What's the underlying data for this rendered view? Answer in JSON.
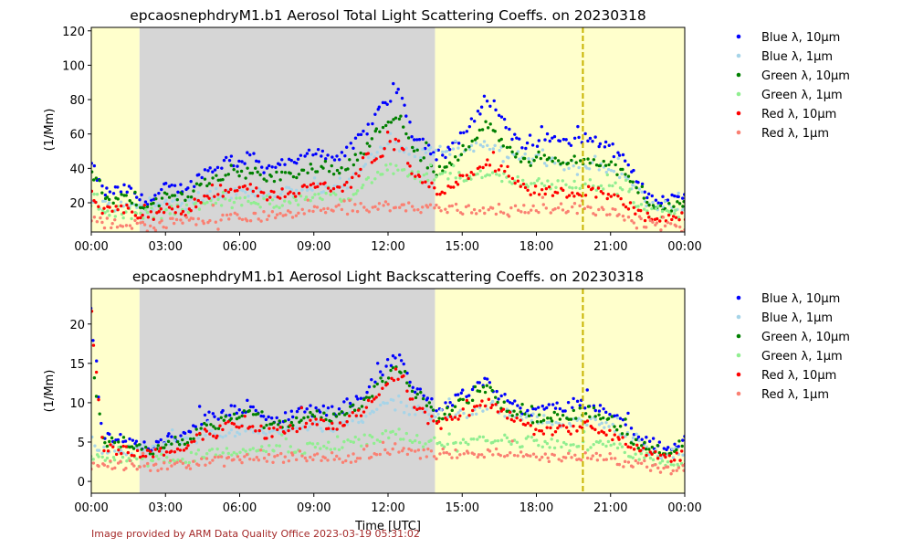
{
  "colors": {
    "night_shade": "#d6d6d6",
    "day_shade": "#ffffcc",
    "marker_line": "#c8b400",
    "footer_text": "#a52a2a"
  },
  "footer": "Image provided by ARM Data Quality Office 2023-03-19 05:31:02",
  "chart_data": [
    {
      "type": "scatter",
      "title": "epcaosnephdryM1.b1 Aerosol Total Light Scattering Coeffs. on 20230318",
      "xlabel": "",
      "ylabel": "(1/Mm)",
      "xlim": [
        0,
        24
      ],
      "ylim": [
        3,
        122
      ],
      "xticks": [
        0,
        3,
        6,
        9,
        12,
        15,
        18,
        21,
        24
      ],
      "xtick_labels": [
        "00:00",
        "03:00",
        "06:00",
        "09:00",
        "12:00",
        "15:00",
        "18:00",
        "21:00",
        "00:00"
      ],
      "yticks": [
        20,
        40,
        60,
        80,
        100,
        120
      ],
      "ytick_labels": [
        "20",
        "40",
        "60",
        "80",
        "100",
        "120"
      ],
      "grid": false,
      "legend": "outside-right",
      "shading": [
        {
          "x0": 0,
          "x1": 1.95,
          "kind": "day"
        },
        {
          "x0": 1.95,
          "x1": 13.9,
          "kind": "night"
        },
        {
          "x0": 13.9,
          "x1": 24,
          "kind": "day"
        }
      ],
      "vline_x": 19.88,
      "x": [
        0.0,
        0.5,
        1.0,
        1.5,
        2.0,
        2.5,
        3.0,
        3.5,
        4.0,
        4.5,
        5.0,
        5.5,
        6.0,
        6.5,
        7.0,
        7.5,
        8.0,
        8.5,
        9.0,
        9.5,
        10.0,
        10.5,
        11.0,
        11.5,
        12.0,
        12.5,
        13.0,
        13.5,
        14.0,
        14.5,
        15.0,
        15.5,
        16.0,
        16.5,
        17.0,
        17.5,
        18.0,
        18.5,
        19.0,
        19.5,
        20.0,
        20.5,
        21.0,
        21.5,
        22.0,
        22.5,
        23.0,
        23.5,
        24.0
      ],
      "series": [
        {
          "name": "Blue λ, 10μm",
          "color": "#0000ff",
          "values": [
            42,
            26,
            27,
            28,
            22,
            22,
            29,
            28,
            30,
            38,
            40,
            45,
            43,
            48,
            40,
            42,
            43,
            45,
            50,
            48,
            47,
            52,
            60,
            72,
            80,
            85,
            60,
            55,
            45,
            52,
            60,
            68,
            82,
            72,
            60,
            52,
            55,
            58,
            55,
            55,
            58,
            55,
            52,
            45,
            35,
            25,
            22,
            22,
            26
          ]
        },
        {
          "name": "Blue λ, 1μm",
          "color": "#a6d4e8",
          "values": [
            20,
            19,
            18,
            19,
            18,
            17,
            20,
            21,
            22,
            24,
            24,
            25,
            26,
            27,
            26,
            26,
            26,
            27,
            28,
            29,
            29,
            32,
            40,
            48,
            55,
            52,
            50,
            48,
            50,
            50,
            50,
            52,
            55,
            50,
            48,
            46,
            45,
            44,
            42,
            42,
            43,
            42,
            40,
            35,
            27,
            20,
            18,
            18,
            18
          ]
        },
        {
          "name": "Green λ, 10μm",
          "color": "#008000",
          "values": [
            35,
            22,
            22,
            23,
            18,
            18,
            24,
            23,
            25,
            32,
            33,
            37,
            36,
            40,
            33,
            35,
            36,
            37,
            41,
            40,
            39,
            44,
            50,
            60,
            68,
            72,
            50,
            45,
            38,
            43,
            50,
            56,
            66,
            58,
            50,
            43,
            45,
            47,
            45,
            44,
            46,
            44,
            42,
            37,
            29,
            21,
            18,
            18,
            21
          ]
        },
        {
          "name": "Green λ, 1μm",
          "color": "#90ee90",
          "values": [
            16,
            14,
            14,
            14,
            13,
            13,
            15,
            16,
            17,
            18,
            19,
            20,
            20,
            21,
            20,
            20,
            20,
            21,
            22,
            23,
            23,
            25,
            30,
            36,
            40,
            38,
            36,
            34,
            35,
            35,
            35,
            36,
            38,
            35,
            34,
            32,
            32,
            31,
            30,
            30,
            31,
            30,
            29,
            26,
            20,
            15,
            13,
            13,
            13
          ]
        },
        {
          "name": "Red λ, 10μm",
          "color": "#ff0000",
          "values": [
            24,
            15,
            15,
            16,
            12,
            12,
            17,
            16,
            18,
            23,
            24,
            27,
            26,
            29,
            24,
            25,
            26,
            27,
            30,
            29,
            28,
            32,
            38,
            46,
            52,
            55,
            36,
            32,
            26,
            30,
            34,
            38,
            45,
            40,
            35,
            28,
            27,
            27,
            26,
            26,
            27,
            26,
            24,
            20,
            15,
            11,
            10,
            10,
            12
          ]
        },
        {
          "name": "Red λ, 1μm",
          "color": "#fa8072",
          "values": [
            9,
            8,
            8,
            8,
            7,
            6,
            8,
            9,
            9,
            10,
            10,
            11,
            12,
            12,
            12,
            12,
            13,
            14,
            15,
            15,
            16,
            16,
            17,
            18,
            18,
            18,
            17,
            17,
            17,
            17,
            16,
            16,
            16,
            16,
            16,
            16,
            17,
            17,
            17,
            17,
            16,
            15,
            14,
            12,
            9,
            7,
            6,
            6,
            6
          ]
        }
      ]
    },
    {
      "type": "scatter",
      "title": "epcaosnephdryM1.b1 Aerosol Light Backscattering Coeffs. on 20230318",
      "xlabel": "Time [UTC]",
      "ylabel": "(1/Mm)",
      "xlim": [
        0,
        24
      ],
      "ylim": [
        -1.5,
        24.5
      ],
      "xticks": [
        0,
        3,
        6,
        9,
        12,
        15,
        18,
        21,
        24
      ],
      "xtick_labels": [
        "00:00",
        "03:00",
        "06:00",
        "09:00",
        "12:00",
        "15:00",
        "18:00",
        "21:00",
        "00:00"
      ],
      "yticks": [
        0,
        5,
        10,
        15,
        20
      ],
      "ytick_labels": [
        "0",
        "5",
        "10",
        "15",
        "20"
      ],
      "grid": false,
      "legend": "outside-right",
      "shading": [
        {
          "x0": 0,
          "x1": 1.95,
          "kind": "day"
        },
        {
          "x0": 1.95,
          "x1": 13.9,
          "kind": "night"
        },
        {
          "x0": 13.9,
          "x1": 24,
          "kind": "day"
        }
      ],
      "vline_x": 19.88,
      "x": [
        0.0,
        0.5,
        1.0,
        1.5,
        2.0,
        2.5,
        3.0,
        3.5,
        4.0,
        4.5,
        5.0,
        5.5,
        6.0,
        6.5,
        7.0,
        7.5,
        8.0,
        8.5,
        9.0,
        9.5,
        10.0,
        10.5,
        11.0,
        11.5,
        12.0,
        12.5,
        13.0,
        13.5,
        14.0,
        14.5,
        15.0,
        15.5,
        16.0,
        16.5,
        17.0,
        17.5,
        18.0,
        18.5,
        19.0,
        19.5,
        20.0,
        20.5,
        21.0,
        21.5,
        22.0,
        22.5,
        23.0,
        23.5,
        24.0
      ],
      "series": [
        {
          "name": "Blue λ, 10μm",
          "color": "#0000ff",
          "values": [
            22,
            5.5,
            5.5,
            5.5,
            4.5,
            4.5,
            5.5,
            5.5,
            6,
            8,
            8,
            9,
            9,
            10,
            8,
            8,
            8.5,
            9,
            9.5,
            9,
            9,
            10,
            11,
            13,
            15,
            16,
            12,
            11,
            9,
            10,
            11,
            12,
            13,
            11,
            10,
            9,
            9,
            9.5,
            9.5,
            9.5,
            10,
            9.5,
            9,
            7.5,
            6,
            5,
            4.5,
            4.5,
            5.5
          ]
        },
        {
          "name": "Blue λ, 1μm",
          "color": "#a6d4e8",
          "values": [
            5,
            4,
            4,
            4,
            4,
            4,
            4.5,
            5,
            5,
            6,
            6,
            6,
            6.5,
            6.5,
            6.5,
            6.5,
            6.5,
            6.5,
            7,
            7,
            7,
            7.5,
            8,
            9,
            10,
            9.5,
            9,
            8.5,
            8.5,
            8.5,
            8.5,
            9,
            9.5,
            9,
            8.5,
            8,
            8,
            8,
            7.5,
            7.5,
            7.5,
            7.5,
            7,
            6,
            5,
            4,
            3.5,
            3.5,
            4
          ]
        },
        {
          "name": "Green λ, 10μm",
          "color": "#008000",
          "values": [
            15,
            5,
            5,
            5,
            4,
            4,
            5,
            5,
            5.5,
            7,
            7,
            8,
            8,
            9,
            7,
            7.5,
            7.5,
            8,
            8.5,
            8,
            8,
            9,
            10,
            12,
            13.5,
            14.5,
            11,
            10,
            8,
            9,
            10,
            11,
            12,
            10,
            9,
            8,
            8,
            8.5,
            8.5,
            8.5,
            9,
            8.5,
            8,
            6.5,
            5,
            4.5,
            4,
            4,
            5
          ]
        },
        {
          "name": "Green λ, 1μm",
          "color": "#90ee90",
          "values": [
            3,
            2.5,
            2.5,
            2.5,
            2.5,
            2.5,
            3,
            3,
            3,
            3.5,
            3.5,
            4,
            4,
            4,
            4,
            4,
            4,
            4,
            4.5,
            4.5,
            4.5,
            5,
            5,
            5.5,
            6,
            6,
            5.5,
            5,
            5,
            5,
            5,
            5.5,
            5.5,
            5.5,
            5,
            5,
            5,
            5,
            4.5,
            4.5,
            4.5,
            4.5,
            4.5,
            4,
            3.5,
            3,
            2.5,
            2.5,
            2.5
          ]
        },
        {
          "name": "Red λ, 10μm",
          "color": "#ff0000",
          "values": [
            21.5,
            4,
            4,
            4,
            3.5,
            3.5,
            4,
            4,
            4.5,
            6,
            6,
            7,
            7,
            7.5,
            6,
            6.5,
            6.5,
            7,
            7.5,
            7,
            7,
            8,
            9,
            11,
            12.5,
            13.5,
            10,
            9,
            7,
            8,
            8.5,
            9,
            10,
            9,
            8,
            7,
            6.5,
            6.5,
            6.5,
            6.5,
            7,
            6.5,
            6,
            5,
            4,
            3.5,
            3,
            3,
            3.5
          ]
        },
        {
          "name": "Red λ, 1μm",
          "color": "#fa8072",
          "values": [
            2,
            2,
            2,
            2,
            1.5,
            2,
            2,
            2,
            2,
            2.5,
            2.5,
            2.5,
            3,
            3,
            3,
            3,
            3,
            3,
            3,
            3,
            3,
            3,
            3.5,
            3.5,
            4,
            4,
            3.5,
            3.5,
            3.5,
            3.5,
            3.5,
            3.5,
            3.5,
            3.5,
            3.5,
            3,
            3,
            3,
            3,
            3,
            3,
            3,
            3,
            2.5,
            2,
            2,
            1.5,
            1.5,
            1.5
          ]
        }
      ]
    }
  ]
}
